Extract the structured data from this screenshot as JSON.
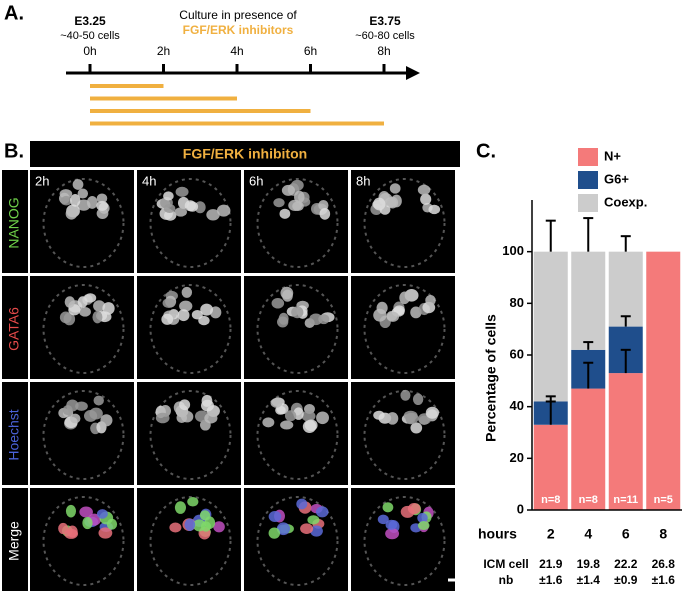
{
  "panel_a": {
    "label": "A.",
    "start_stage": "E3.25",
    "start_cells": "~40-50 cells",
    "culture": "Culture in presence of",
    "inhibitors": "FGF/ERK inhibitors",
    "end_stage": "E3.75",
    "end_cells": "~60-80 cells",
    "timepoints": [
      "0h",
      "2h",
      "4h",
      "6h",
      "8h"
    ]
  },
  "panel_b": {
    "label": "B.",
    "header": "FGF/ERK inhibiton",
    "columns": [
      "2h",
      "4h",
      "6h",
      "8h"
    ],
    "rows": [
      "NANOG",
      "GATA6",
      "Hoechst",
      "Merge"
    ]
  },
  "chart_data": {
    "type": "bar",
    "stacked": true,
    "panel_label": "C.",
    "x_label": "hours",
    "y_label": "Percentage of cells",
    "categories": [
      "2",
      "4",
      "6",
      "8"
    ],
    "series": [
      {
        "name": "N+",
        "color": "#f47a7a",
        "values": [
          33,
          47,
          53,
          100
        ],
        "errors": [
          9,
          10,
          9,
          null
        ]
      },
      {
        "name": "G6+",
        "color": "#1f4e8c",
        "values": [
          9,
          15,
          18,
          0
        ],
        "errors": [
          2,
          3,
          4,
          null
        ]
      },
      {
        "name": "Coexp.",
        "color": "#cccccc",
        "values": [
          58,
          38,
          29,
          0
        ],
        "errors": [
          12,
          13,
          6,
          null
        ]
      }
    ],
    "bar_labels": [
      "n=8",
      "n=8",
      "n=11",
      "n=5"
    ],
    "row_label": [
      "ICM cell",
      "nb"
    ],
    "row_values": [
      [
        "21.9",
        "±1.6"
      ],
      [
        "19.8",
        "±1.4"
      ],
      [
        "22.2",
        "±0.9"
      ],
      [
        "26.8",
        "±1.6"
      ]
    ],
    "ylim": [
      0,
      120
    ],
    "yticks": [
      0,
      20,
      40,
      60,
      80,
      100
    ],
    "legend": "top"
  }
}
